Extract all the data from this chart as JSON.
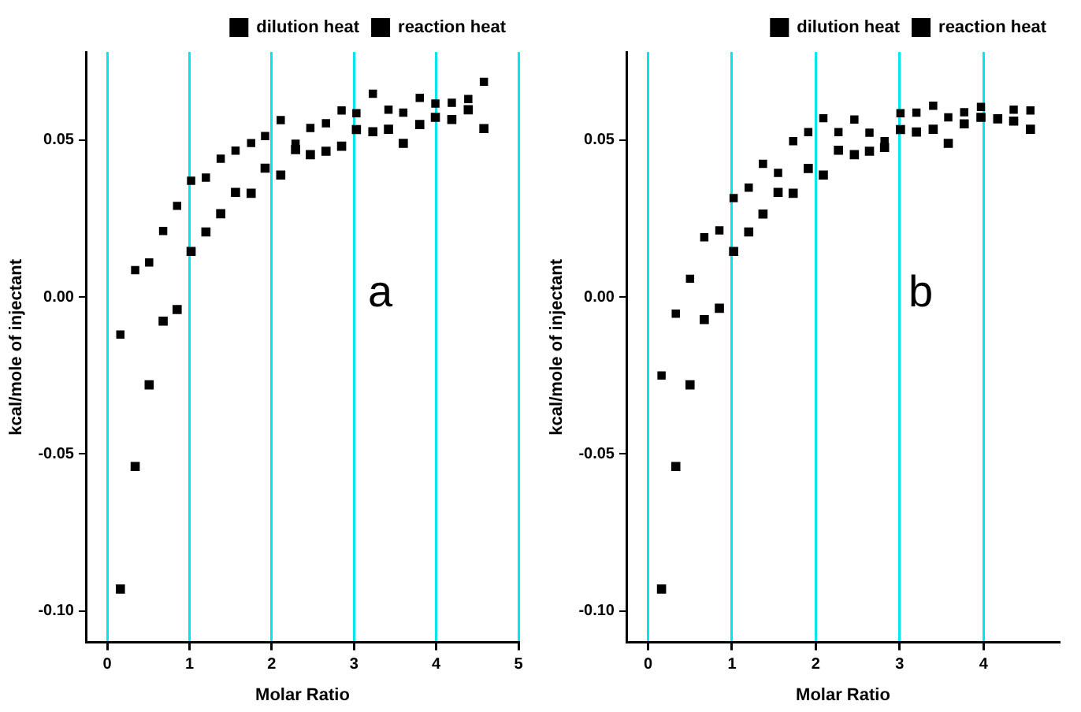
{
  "chart_data": [
    {
      "type": "scatter",
      "xlabel": "Molar Ratio",
      "ylabel": "kcal/mole of injectant",
      "xlim": [
        -0.25,
        5
      ],
      "xticks": [
        0,
        1,
        2,
        3,
        4,
        5
      ],
      "ylim": [
        -0.11,
        0.078
      ],
      "yticks": [
        {
          "value": -0.1,
          "label": "-0.10"
        },
        {
          "value": -0.05,
          "label": "-0.05"
        },
        {
          "value": 0,
          "label": "0.00"
        },
        {
          "value": 0.05,
          "label": "0.05"
        }
      ],
      "grid": "x",
      "legend": "top right",
      "marker": "square",
      "annotations": [
        "a"
      ],
      "series": [
        {
          "name": "dilution heat",
          "color": "#000000",
          "x": [
            0.16,
            0.34,
            0.51,
            0.68,
            0.85,
            1.02,
            1.2,
            1.38,
            1.56,
            1.75,
            1.92,
            2.11,
            2.29,
            2.47,
            2.66,
            2.85,
            3.03,
            3.23,
            3.42,
            3.6,
            3.8,
            3.99,
            4.19,
            4.39,
            4.58
          ],
          "values": [
            -0.012,
            0.0085,
            0.011,
            0.021,
            0.029,
            0.037,
            0.038,
            0.044,
            0.0466,
            0.049,
            0.0512,
            0.0563,
            0.0488,
            0.0538,
            0.0553,
            0.0594,
            0.0585,
            0.0647,
            0.0596,
            0.0587,
            0.0634,
            0.0616,
            0.0618,
            0.063,
            0.0685
          ]
        },
        {
          "name": "reaction heat",
          "color": "#000000",
          "x": [
            0.16,
            0.34,
            0.51,
            0.68,
            0.85,
            1.02,
            1.2,
            1.38,
            1.56,
            1.75,
            1.92,
            2.11,
            2.29,
            2.47,
            2.66,
            2.85,
            3.03,
            3.23,
            3.42,
            3.6,
            3.8,
            3.99,
            4.19,
            4.39,
            4.58
          ],
          "values": [
            -0.093,
            -0.054,
            -0.028,
            -0.0077,
            -0.004,
            0.0145,
            0.0207,
            0.0265,
            0.0333,
            0.033,
            0.041,
            0.0388,
            0.0469,
            0.0453,
            0.0464,
            0.048,
            0.0533,
            0.0526,
            0.0534,
            0.0489,
            0.0549,
            0.0572,
            0.0565,
            0.0596,
            0.0536
          ]
        }
      ]
    },
    {
      "type": "scatter",
      "xlabel": "Molar Ratio",
      "ylabel": "kcal/mole of injectant",
      "xlim": [
        -0.25,
        4.9
      ],
      "xticks": [
        0,
        1,
        2,
        3,
        4
      ],
      "ylim": [
        -0.11,
        0.078
      ],
      "yticks": [
        {
          "value": -0.1,
          "label": "-0.10"
        },
        {
          "value": -0.05,
          "label": "-0.05"
        },
        {
          "value": 0,
          "label": "0.00"
        },
        {
          "value": 0.05,
          "label": "0.05"
        }
      ],
      "grid": "x",
      "legend": "top right",
      "marker": "square",
      "annotations": [
        "b"
      ],
      "series": [
        {
          "name": "dilution heat",
          "color": "#000000",
          "x": [
            0.16,
            0.33,
            0.5,
            0.67,
            0.85,
            1.02,
            1.2,
            1.37,
            1.55,
            1.73,
            1.91,
            2.09,
            2.27,
            2.46,
            2.64,
            2.82,
            3.01,
            3.2,
            3.4,
            3.58,
            3.77,
            3.97,
            4.17,
            4.36,
            4.56
          ],
          "values": [
            -0.025,
            -0.0053,
            0.0058,
            0.019,
            0.0212,
            0.0315,
            0.0348,
            0.0424,
            0.0395,
            0.0496,
            0.0525,
            0.0569,
            0.0525,
            0.0565,
            0.0523,
            0.0496,
            0.0585,
            0.0587,
            0.0609,
            0.0572,
            0.0588,
            0.0605,
            null,
            0.0596,
            0.0594
          ]
        },
        {
          "name": "reaction heat",
          "color": "#000000",
          "x": [
            0.16,
            0.33,
            0.5,
            0.67,
            0.85,
            1.02,
            1.2,
            1.37,
            1.55,
            1.73,
            1.91,
            2.09,
            2.27,
            2.46,
            2.64,
            2.82,
            3.01,
            3.2,
            3.4,
            3.58,
            3.77,
            3.97,
            4.17,
            4.36,
            4.56
          ],
          "values": [
            -0.093,
            -0.054,
            -0.028,
            -0.0072,
            -0.0036,
            0.0145,
            0.0207,
            0.0264,
            0.0333,
            0.033,
            0.0409,
            0.0388,
            0.0467,
            0.0453,
            0.0464,
            0.0476,
            0.0533,
            0.0525,
            0.0534,
            0.0489,
            0.0551,
            0.0572,
            0.0567,
            0.056,
            0.0534
          ]
        }
      ]
    }
  ]
}
